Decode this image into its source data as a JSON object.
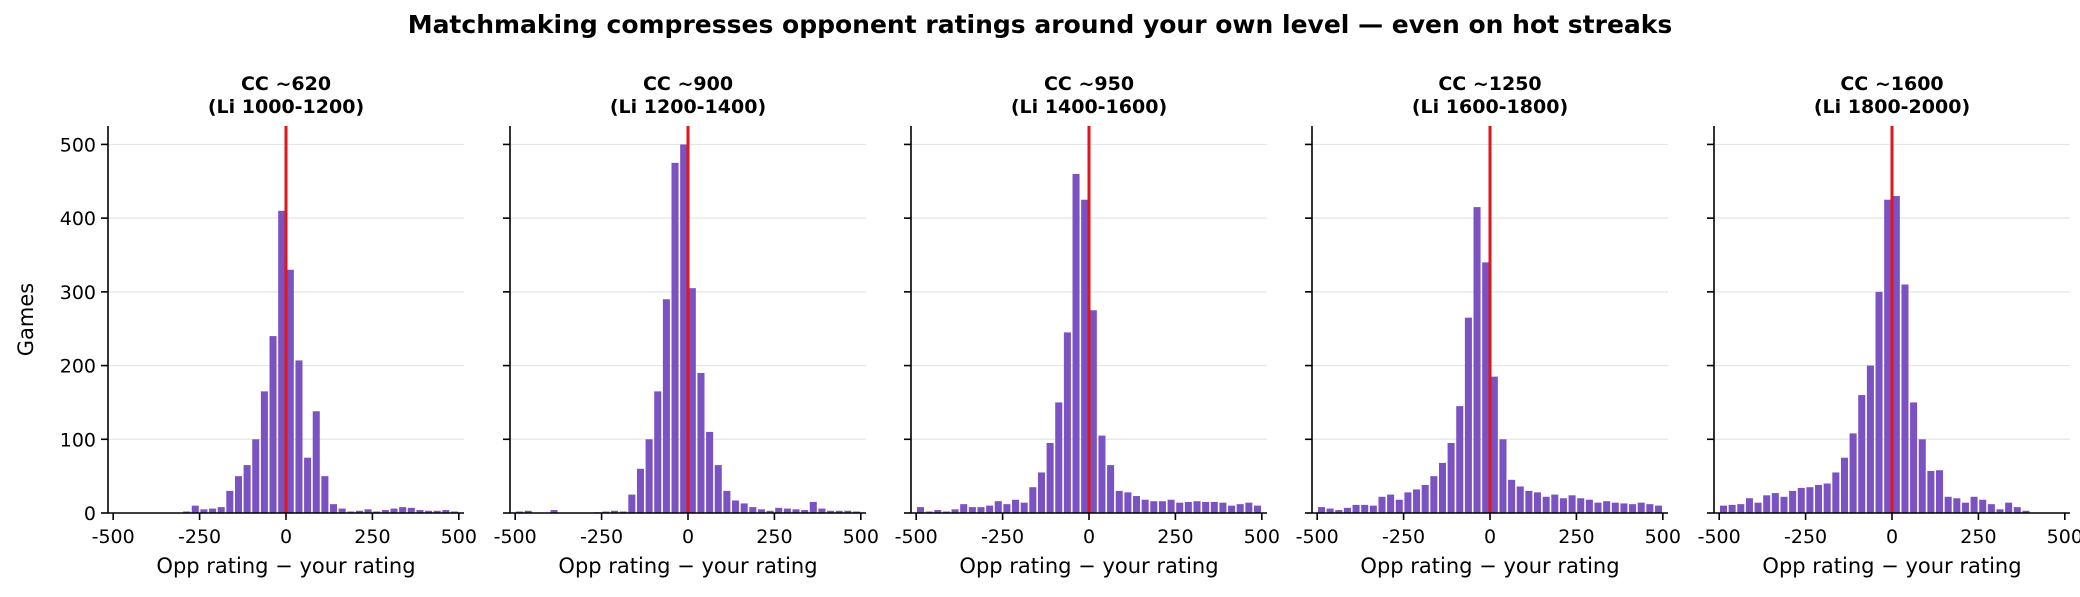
{
  "figure": {
    "title": "Matchmaking compresses opponent ratings around your own level — even on hot streaks"
  },
  "style": {
    "bar_color": "#7b52c1",
    "reference_line_color": "#e0161b",
    "grid_color": "#e6e6e6"
  },
  "chart_data": [
    {
      "type": "bar",
      "title": "CC ~620\n(Li 1000-1200)",
      "xlabel": "Opp rating − your rating",
      "ylabel": "Games",
      "xlim": [
        -515,
        515
      ],
      "ylim": [
        0,
        525
      ],
      "xticks": [
        -500,
        -250,
        0,
        250,
        500
      ],
      "yticks": [
        0,
        100,
        200,
        300,
        400,
        500
      ],
      "grid": "y",
      "reference_line_x": 0,
      "bin_width": 25,
      "x": [
        -487.5,
        -462.5,
        -437.5,
        -412.5,
        -387.5,
        -362.5,
        -337.5,
        -312.5,
        -287.5,
        -262.5,
        -237.5,
        -212.5,
        -187.5,
        -162.5,
        -137.5,
        -112.5,
        -87.5,
        -62.5,
        -37.5,
        -12.5,
        12.5,
        37.5,
        62.5,
        87.5,
        112.5,
        137.5,
        162.5,
        187.5,
        212.5,
        237.5,
        262.5,
        287.5,
        312.5,
        337.5,
        362.5,
        387.5,
        412.5,
        437.5,
        462.5,
        487.5
      ],
      "values": [
        0,
        0,
        0,
        0,
        0,
        0,
        0,
        0,
        2,
        10,
        5,
        6,
        8,
        30,
        50,
        65,
        100,
        165,
        240,
        410,
        330,
        207,
        75,
        138,
        50,
        12,
        6,
        2,
        3,
        5,
        2,
        4,
        6,
        8,
        7,
        4,
        3,
        3,
        4,
        2
      ]
    },
    {
      "type": "bar",
      "title": "CC ~900\n(Li 1200-1400)",
      "xlabel": "Opp rating − your rating",
      "ylabel": "",
      "xlim": [
        -515,
        515
      ],
      "ylim": [
        0,
        525
      ],
      "xticks": [
        -500,
        -250,
        0,
        250,
        500
      ],
      "yticks": [
        0,
        100,
        200,
        300,
        400,
        500
      ],
      "grid": "y",
      "reference_line_x": 0,
      "bin_width": 25,
      "x": [
        -487.5,
        -462.5,
        -437.5,
        -412.5,
        -387.5,
        -362.5,
        -337.5,
        -312.5,
        -287.5,
        -262.5,
        -237.5,
        -212.5,
        -187.5,
        -162.5,
        -137.5,
        -112.5,
        -87.5,
        -62.5,
        -37.5,
        -12.5,
        12.5,
        37.5,
        62.5,
        87.5,
        112.5,
        137.5,
        162.5,
        187.5,
        212.5,
        237.5,
        262.5,
        287.5,
        312.5,
        337.5,
        362.5,
        387.5,
        412.5,
        437.5,
        462.5,
        487.5
      ],
      "values": [
        2,
        3,
        0,
        0,
        4,
        0,
        0,
        0,
        0,
        1,
        2,
        3,
        2,
        25,
        60,
        100,
        165,
        290,
        475,
        500,
        305,
        190,
        110,
        65,
        30,
        17,
        13,
        8,
        5,
        3,
        7,
        6,
        5,
        4,
        15,
        6,
        3,
        3,
        3,
        2
      ]
    },
    {
      "type": "bar",
      "title": "CC ~950\n(Li 1400-1600)",
      "xlabel": "Opp rating − your rating",
      "ylabel": "",
      "xlim": [
        -515,
        515
      ],
      "ylim": [
        0,
        525
      ],
      "xticks": [
        -500,
        -250,
        0,
        250,
        500
      ],
      "yticks": [
        0,
        100,
        200,
        300,
        400,
        500
      ],
      "grid": "y",
      "reference_line_x": 0,
      "bin_width": 25,
      "x": [
        -487.5,
        -462.5,
        -437.5,
        -412.5,
        -387.5,
        -362.5,
        -337.5,
        -312.5,
        -287.5,
        -262.5,
        -237.5,
        -212.5,
        -187.5,
        -162.5,
        -137.5,
        -112.5,
        -87.5,
        -62.5,
        -37.5,
        -12.5,
        12.5,
        37.5,
        62.5,
        87.5,
        112.5,
        137.5,
        162.5,
        187.5,
        212.5,
        237.5,
        262.5,
        287.5,
        312.5,
        337.5,
        362.5,
        387.5,
        412.5,
        437.5,
        462.5,
        487.5
      ],
      "values": [
        8,
        2,
        4,
        2,
        5,
        12,
        8,
        8,
        10,
        16,
        12,
        18,
        14,
        35,
        55,
        95,
        150,
        245,
        460,
        425,
        275,
        105,
        65,
        30,
        28,
        23,
        18,
        16,
        16,
        18,
        14,
        15,
        16,
        15,
        15,
        14,
        10,
        12,
        14,
        10
      ]
    },
    {
      "type": "bar",
      "title": "CC ~1250\n(Li 1600-1800)",
      "xlabel": "Opp rating − your rating",
      "ylabel": "",
      "xlim": [
        -515,
        515
      ],
      "ylim": [
        0,
        525
      ],
      "xticks": [
        -500,
        -250,
        0,
        250,
        500
      ],
      "yticks": [
        0,
        100,
        200,
        300,
        400,
        500
      ],
      "grid": "y",
      "reference_line_x": 0,
      "bin_width": 25,
      "x": [
        -487.5,
        -462.5,
        -437.5,
        -412.5,
        -387.5,
        -362.5,
        -337.5,
        -312.5,
        -287.5,
        -262.5,
        -237.5,
        -212.5,
        -187.5,
        -162.5,
        -137.5,
        -112.5,
        -87.5,
        -62.5,
        -37.5,
        -12.5,
        12.5,
        37.5,
        62.5,
        87.5,
        112.5,
        137.5,
        162.5,
        187.5,
        212.5,
        237.5,
        262.5,
        287.5,
        312.5,
        337.5,
        362.5,
        387.5,
        412.5,
        437.5,
        462.5,
        487.5
      ],
      "values": [
        8,
        6,
        4,
        7,
        11,
        11,
        10,
        22,
        25,
        18,
        28,
        32,
        38,
        50,
        68,
        95,
        145,
        265,
        415,
        340,
        185,
        100,
        45,
        36,
        30,
        28,
        22,
        25,
        20,
        24,
        20,
        18,
        14,
        16,
        14,
        13,
        12,
        14,
        12,
        10
      ]
    },
    {
      "type": "bar",
      "title": "CC ~1600\n(Li 1800-2000)",
      "xlabel": "Opp rating − your rating",
      "ylabel": "",
      "xlim": [
        -515,
        515
      ],
      "ylim": [
        0,
        525
      ],
      "xticks": [
        -500,
        -250,
        0,
        250,
        500
      ],
      "yticks": [
        0,
        100,
        200,
        300,
        400,
        500
      ],
      "grid": "y",
      "reference_line_x": 0,
      "bin_width": 25,
      "x": [
        -487.5,
        -462.5,
        -437.5,
        -412.5,
        -387.5,
        -362.5,
        -337.5,
        -312.5,
        -287.5,
        -262.5,
        -237.5,
        -212.5,
        -187.5,
        -162.5,
        -137.5,
        -112.5,
        -87.5,
        -62.5,
        -37.5,
        -12.5,
        12.5,
        37.5,
        62.5,
        87.5,
        112.5,
        137.5,
        162.5,
        187.5,
        212.5,
        237.5,
        262.5,
        287.5,
        312.5,
        337.5,
        362.5,
        387.5,
        412.5,
        437.5,
        462.5,
        487.5
      ],
      "values": [
        10,
        11,
        12,
        20,
        14,
        24,
        27,
        22,
        30,
        34,
        35,
        38,
        40,
        55,
        75,
        108,
        160,
        200,
        300,
        425,
        430,
        310,
        150,
        100,
        57,
        58,
        22,
        20,
        14,
        22,
        18,
        12,
        5,
        14,
        8,
        3,
        0,
        0,
        0,
        0
      ]
    }
  ]
}
